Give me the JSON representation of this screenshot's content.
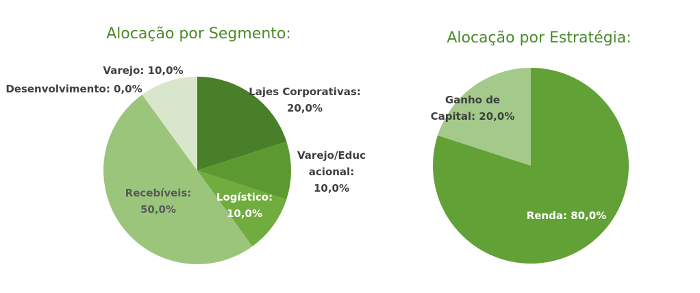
{
  "chart_data": [
    {
      "type": "pie",
      "title": "Alocação por Segmento:",
      "slices": [
        {
          "name": "Lajes Corporativas",
          "value": 20.0,
          "label": [
            "Lajes Corporativas:",
            "20,0%"
          ],
          "color": "#4a7f2a",
          "label_color": "#404040"
        },
        {
          "name": "Varejo/Educacional",
          "value": 10.0,
          "label": [
            "Varejo/Educ",
            "acional:",
            "10,0%"
          ],
          "color": "#5c9a31",
          "label_color": "#404040"
        },
        {
          "name": "Logístico",
          "value": 10.0,
          "label": [
            "Logístico:",
            "10,0%"
          ],
          "color": "#70ac3e",
          "label_color": "#ffffff"
        },
        {
          "name": "Recebíveis",
          "value": 50.0,
          "label": [
            "Recebíveis:",
            "50,0%"
          ],
          "color": "#9cc57c",
          "label_color": "#595959"
        },
        {
          "name": "Desenvolvimento",
          "value": 0.0,
          "label": [
            "Desenvolvimento: 0,0%"
          ],
          "color": "#b9d6a2",
          "label_color": "#404040"
        },
        {
          "name": "Varejo",
          "value": 10.0,
          "label": [
            "Varejo: 10,0%"
          ],
          "color": "#d8e7cc",
          "label_color": "#404040"
        }
      ]
    },
    {
      "type": "pie",
      "title": "Alocação por Estratégia:",
      "slices": [
        {
          "name": "Renda",
          "value": 80.0,
          "label": [
            "Renda: 80,0%"
          ],
          "color": "#62a136",
          "label_color": "#ffffff"
        },
        {
          "name": "Ganho de Capital",
          "value": 20.0,
          "label": [
            "Ganho de",
            "Capital: 20,0%"
          ],
          "color": "#a3ca8a",
          "label_color": "#404040"
        }
      ]
    }
  ]
}
